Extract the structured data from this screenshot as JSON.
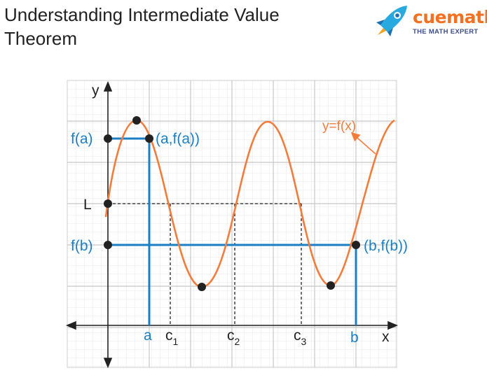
{
  "title_line1": "Understanding Intermediate Value",
  "title_line2": "Theorem",
  "logo": {
    "brand": "cuemath",
    "tagline": "THE MATH EXPERT",
    "icon": "rocket-icon"
  },
  "axes": {
    "x_label": "x",
    "y_label": "y"
  },
  "curve_label": "y=f(x)",
  "y_markers": {
    "fa": "f(a)",
    "L": "L",
    "fb": "f(b)"
  },
  "points": {
    "a_point": "(a,f(a))",
    "b_point": "(b,f(b))"
  },
  "x_markers": {
    "a": "a",
    "b": "b",
    "c1": {
      "base": "c",
      "sub": "1"
    },
    "c2": {
      "base": "c",
      "sub": "2"
    },
    "c3": {
      "base": "c",
      "sub": "3"
    }
  },
  "colors": {
    "curve": "#f37c3a",
    "blue": "#1a7fc4",
    "dark": "#222222",
    "grid": "#d9d9d9"
  }
}
